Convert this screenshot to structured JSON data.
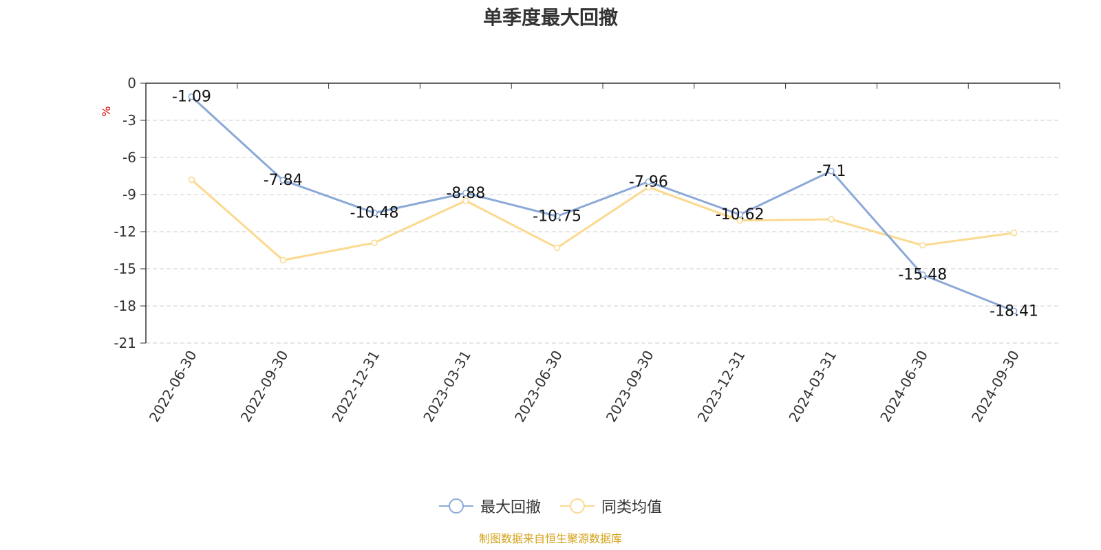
{
  "title": "单季度最大回撤",
  "footer": "制图数据来自恒生聚源数据库",
  "colors": {
    "series1": "#8ba9d8",
    "series2": "#fbd98e",
    "footer": "#d4a017",
    "unit": "#e00000",
    "axis": "#333333"
  },
  "chart_data": {
    "type": "line",
    "title": "单季度最大回撤",
    "ylabel": "%",
    "ylim": [
      -21,
      0
    ],
    "yticks": [
      0,
      -3,
      -6,
      -9,
      -12,
      -15,
      -18,
      -21
    ],
    "grid": "horizontal dashed",
    "legend": "bottom-center",
    "categories": [
      "2022-06-30",
      "2022-09-30",
      "2022-12-31",
      "2023-03-31",
      "2023-06-30",
      "2023-09-30",
      "2023-12-31",
      "2024-03-31",
      "2024-06-30",
      "2024-09-30"
    ],
    "series": [
      {
        "name": "最大回撤",
        "values": [
          -1.09,
          -7.84,
          -10.48,
          -8.88,
          -10.75,
          -7.96,
          -10.62,
          -7.1,
          -15.48,
          -18.41
        ],
        "labels": [
          "-1.09",
          "-7.84",
          "-10.48",
          "-8.88",
          "-10.75",
          "-7.96",
          "-10.62",
          "-7.1",
          "-15.48",
          "-18.41"
        ]
      },
      {
        "name": "同类均值",
        "values": [
          -7.8,
          -14.3,
          -12.9,
          -9.5,
          -13.3,
          -8.4,
          -11.1,
          -11.0,
          -13.1,
          -12.1
        ]
      }
    ]
  }
}
